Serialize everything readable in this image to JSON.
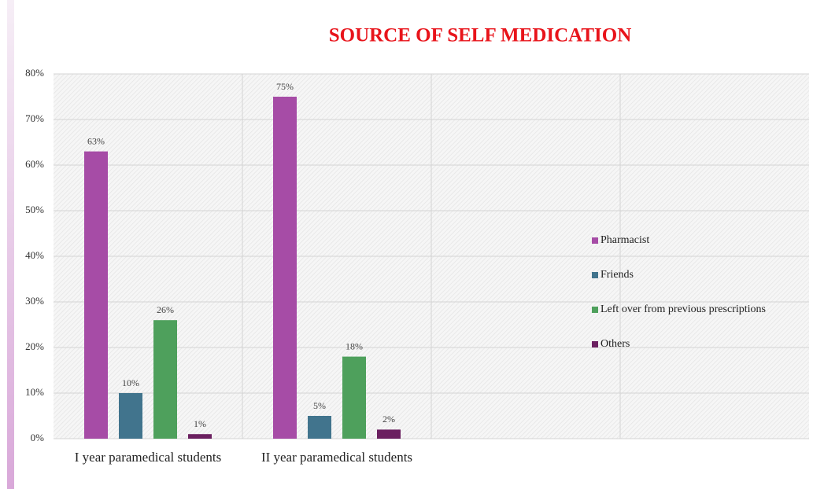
{
  "chart_data": {
    "type": "bar",
    "title": "SOURCE OF SELF MEDICATION",
    "categories": [
      "I year paramedical students",
      "II year paramedical students",
      null,
      null
    ],
    "series": [
      {
        "name": "Pharmacist",
        "color": "#a64ca6",
        "values": [
          63,
          75,
          null,
          null
        ],
        "value_labels": [
          "63%",
          "75%",
          null,
          null
        ]
      },
      {
        "name": "Friends",
        "color": "#41748d",
        "values": [
          10,
          5,
          null,
          null
        ],
        "value_labels": [
          "10%",
          "5%",
          null,
          null
        ]
      },
      {
        "name": "Left over from previous prescriptions",
        "color": "#4ea05c",
        "values": [
          26,
          18,
          null,
          null
        ],
        "value_labels": [
          "26%",
          "18%",
          null,
          null
        ]
      },
      {
        "name": "Others",
        "color": "#6b2060",
        "values": [
          1,
          2,
          null,
          null
        ],
        "value_labels": [
          "1%",
          "2%",
          null,
          null
        ]
      }
    ],
    "ylim": [
      0,
      80
    ],
    "yticks": [
      {
        "value": 0,
        "label": "0%"
      },
      {
        "value": 10,
        "label": "10%"
      },
      {
        "value": 20,
        "label": "20%"
      },
      {
        "value": 30,
        "label": "30%"
      },
      {
        "value": 40,
        "label": "40%"
      },
      {
        "value": 50,
        "label": "50%"
      },
      {
        "value": 60,
        "label": "60%"
      },
      {
        "value": 70,
        "label": "70%"
      },
      {
        "value": 80,
        "label": "80%"
      }
    ],
    "grid": true,
    "legend": "right"
  }
}
